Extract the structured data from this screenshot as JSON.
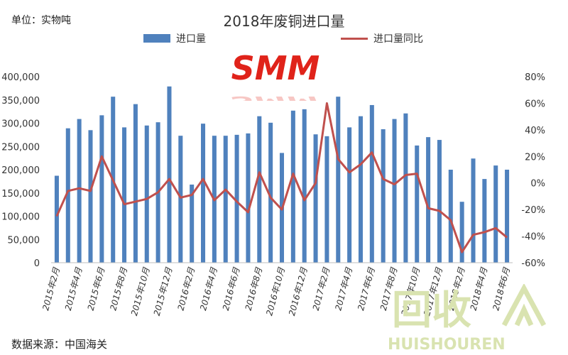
{
  "header": {
    "unit_label": "单位：实物吨",
    "title": "2018年废铜进口量",
    "source_label": "数据来源：中国海关"
  },
  "logo": {
    "text": "SMM"
  },
  "watermark": {
    "text_cn": "回收",
    "text_en": "HUISHOUREN"
  },
  "colors": {
    "bar": "#4f81bd",
    "line": "#c0504d",
    "logo": "#e0231a"
  },
  "chart_data": {
    "type": "bar",
    "title": "2018年废铜进口量",
    "categories": [
      "2015年2月",
      "2015年3月",
      "2015年4月",
      "2015年5月",
      "2015年6月",
      "2015年7月",
      "2015年8月",
      "2015年9月",
      "2015年10月",
      "2015年11月",
      "2015年12月",
      "2016年1月",
      "2016年2月",
      "2016年3月",
      "2016年4月",
      "2016年5月",
      "2016年6月",
      "2016年7月",
      "2016年8月",
      "2016年9月",
      "2016年10月",
      "2016年11月",
      "2016年12月",
      "2017年1月",
      "2017年2月",
      "2017年3月",
      "2017年4月",
      "2017年5月",
      "2017年6月",
      "2017年7月",
      "2017年8月",
      "2017年9月",
      "2017年10月",
      "2017年11月",
      "2017年12月",
      "2018年1月",
      "2018年2月",
      "2018年3月",
      "2018年4月",
      "2018年5月",
      "2018年6月"
    ],
    "x_tick_labels": [
      "2015年2月",
      "2015年4月",
      "2015年6月",
      "2015年8月",
      "2015年10月",
      "2015年12月",
      "2016年2月",
      "2016年4月",
      "2016年6月",
      "2016年8月",
      "2016年10月",
      "2016年12月",
      "2017年2月",
      "2017年4月",
      "2017年6月",
      "2017年8月",
      "2017年10月",
      "2017年12月",
      "2018年2月",
      "2018年4月",
      "2018年6月"
    ],
    "series": [
      {
        "name": "进口量",
        "type": "bar",
        "axis": "left",
        "values": [
          187000,
          289000,
          309000,
          285000,
          317000,
          357000,
          291000,
          341000,
          295000,
          302000,
          379000,
          273000,
          168000,
          299000,
          273000,
          273000,
          275000,
          278000,
          315000,
          301000,
          236000,
          327000,
          330000,
          276000,
          272000,
          357000,
          291000,
          315000,
          339000,
          287000,
          309000,
          321000,
          252000,
          270000,
          264000,
          200000,
          131000,
          224000,
          180000,
          209000,
          200000
        ]
      },
      {
        "name": "进口量同比",
        "type": "line",
        "axis": "right",
        "values": [
          -25,
          -6,
          -4,
          -6,
          20,
          2,
          -16,
          -14,
          -12,
          -7,
          3,
          -11,
          -9,
          3,
          -13,
          -5,
          -14,
          -22,
          8,
          -11,
          -20,
          7,
          -13,
          0,
          60,
          18,
          8,
          14,
          23,
          3,
          -1,
          6,
          7,
          -19,
          -21,
          -28,
          -52,
          -39,
          -37,
          -34,
          -41
        ]
      }
    ],
    "y_left": {
      "ylim": [
        0,
        400000
      ],
      "ticks": [
        "0",
        "50,000",
        "100,000",
        "150,000",
        "200,000",
        "250,000",
        "300,000",
        "350,000",
        "400,000"
      ]
    },
    "y_right": {
      "ylim": [
        -60,
        80
      ],
      "ticks": [
        "-60%",
        "-40%",
        "-20%",
        "0%",
        "20%",
        "40%",
        "60%",
        "80%"
      ]
    },
    "legend_position": "top",
    "grid": false
  }
}
